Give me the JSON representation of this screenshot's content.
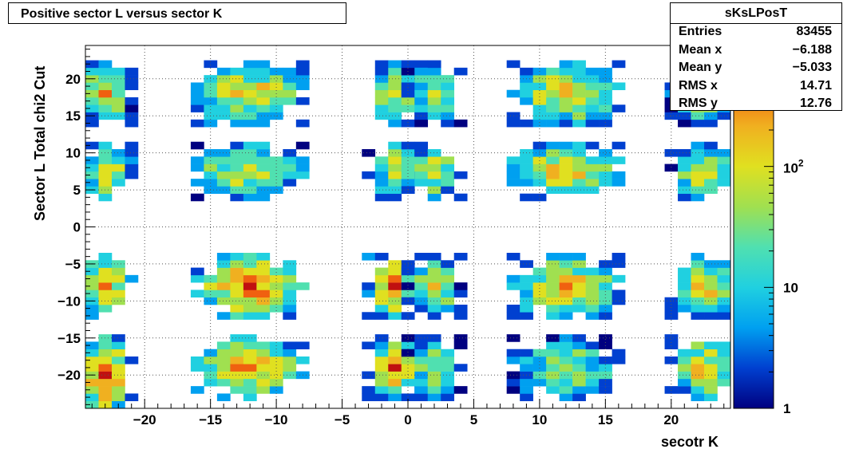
{
  "title": "Positive sector L versus sector K",
  "stats": {
    "name": "sKsLPosT",
    "rows": [
      {
        "label": "Entries",
        "value": "83455"
      },
      {
        "label": "Mean x",
        "value": "−6.188"
      },
      {
        "label": "Mean y",
        "value": "−5.033"
      },
      {
        "label": "RMS x",
        "value": "14.71"
      },
      {
        "label": "RMS y",
        "value": "12.76"
      }
    ]
  },
  "chart_data": {
    "type": "heatmap",
    "title": "Positive sector L versus sector K",
    "xlabel": "secotr K",
    "ylabel": "Sector L  Total chi2 Cut",
    "xlim": [
      -24.5,
      24.5
    ],
    "ylim": [
      -24.5,
      24.5
    ],
    "xticks": [
      -20,
      -15,
      -10,
      -5,
      0,
      5,
      10,
      15,
      20
    ],
    "yticks": [
      -20,
      -15,
      -10,
      -5,
      0,
      5,
      10,
      15,
      20
    ],
    "xtick_labels": [
      "−20",
      "−15",
      "−10",
      "−5",
      "0",
      "5",
      "10",
      "15",
      "20"
    ],
    "ytick_labels": [
      "−20",
      "−15",
      "−10",
      "−5",
      "0",
      "5",
      "10",
      "15",
      "20"
    ],
    "grid": true,
    "color_scale": "log",
    "zlim": [
      1,
      1000
    ],
    "z_tick_labels": [
      "1",
      "10",
      "10^2"
    ],
    "palette": [
      "#000080",
      "#0040d0",
      "#00a0f0",
      "#20d0e0",
      "#50e0b0",
      "#a0e050",
      "#e0e020",
      "#f0b020",
      "#f06010",
      "#c01010"
    ],
    "clusters": [
      {
        "x": [
          -24,
          -22
        ],
        "y": [
          -24,
          -16
        ],
        "level": 9
      },
      {
        "x": [
          -15,
          -9
        ],
        "y": [
          -22,
          -16
        ],
        "level": 8
      },
      {
        "x": [
          -2,
          0
        ],
        "y": [
          -22,
          -16
        ],
        "level": 8
      },
      {
        "x": [
          1,
          3
        ],
        "y": [
          -22,
          -16
        ],
        "level": 5
      },
      {
        "x": [
          9,
          15
        ],
        "y": [
          -22,
          -16
        ],
        "level": 5
      },
      {
        "x": [
          21,
          24
        ],
        "y": [
          -22,
          -16
        ],
        "level": 7
      },
      {
        "x": [
          -24,
          -22
        ],
        "y": [
          -11,
          -5
        ],
        "level": 9
      },
      {
        "x": [
          -15,
          -9
        ],
        "y": [
          -11,
          -5
        ],
        "level": 9
      },
      {
        "x": [
          -2,
          0
        ],
        "y": [
          -11,
          -5
        ],
        "level": 9
      },
      {
        "x": [
          1,
          3
        ],
        "y": [
          -11,
          -5
        ],
        "level": 6
      },
      {
        "x": [
          9,
          15
        ],
        "y": [
          -11,
          -5
        ],
        "level": 7
      },
      {
        "x": [
          21,
          24
        ],
        "y": [
          -11,
          -5
        ],
        "level": 7
      },
      {
        "x": [
          -24,
          -22
        ],
        "y": [
          5,
          10
        ],
        "level": 7
      },
      {
        "x": [
          -15,
          -9
        ],
        "y": [
          5,
          10
        ],
        "level": 6
      },
      {
        "x": [
          -2,
          0
        ],
        "y": [
          5,
          10
        ],
        "level": 6
      },
      {
        "x": [
          1,
          3
        ],
        "y": [
          5,
          10
        ],
        "level": 6
      },
      {
        "x": [
          9,
          15
        ],
        "y": [
          5,
          10
        ],
        "level": 7
      },
      {
        "x": [
          21,
          24
        ],
        "y": [
          5,
          10
        ],
        "level": 6
      },
      {
        "x": [
          -24,
          -22
        ],
        "y": [
          15,
          21
        ],
        "level": 7
      },
      {
        "x": [
          -15,
          -9
        ],
        "y": [
          15,
          21
        ],
        "level": 7
      },
      {
        "x": [
          -2,
          0
        ],
        "y": [
          15,
          21
        ],
        "level": 6
      },
      {
        "x": [
          1,
          3
        ],
        "y": [
          15,
          21
        ],
        "level": 5
      },
      {
        "x": [
          9,
          15
        ],
        "y": [
          15,
          21
        ],
        "level": 7
      },
      {
        "x": [
          21,
          24
        ],
        "y": [
          15,
          21
        ],
        "level": 6
      }
    ]
  }
}
